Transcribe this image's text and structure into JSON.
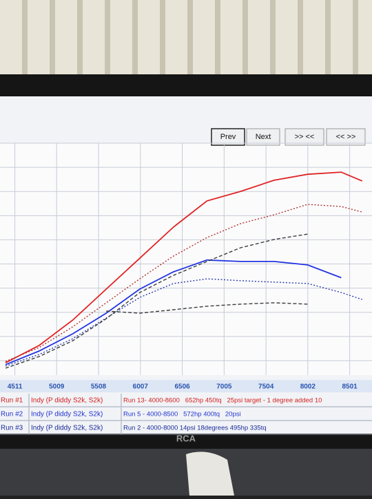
{
  "chart_data": {
    "type": "line",
    "x": [
      4400,
      4800,
      5200,
      5600,
      6000,
      6400,
      6800,
      7200,
      7600,
      8000,
      8400,
      8650
    ],
    "xlim": [
      4334,
      8767
    ],
    "xticks": [
      4511,
      5009,
      5508,
      6007,
      6506,
      7005,
      7504,
      8002,
      8501
    ],
    "ylim": [
      0,
      100
    ],
    "grid": true,
    "series": [
      {
        "color": "#e02222",
        "style": "solid",
        "values": [
          5.3,
          12.8,
          23.7,
          37.1,
          50.4,
          63.8,
          75.1,
          79.2,
          84.0,
          86.6,
          87.5,
          83.7
        ]
      },
      {
        "color": "#b0302c",
        "style": "dotted",
        "values": [
          5.9,
          11.9,
          20.8,
          31.2,
          41.5,
          51.3,
          59.3,
          65.3,
          69.1,
          73.6,
          72.7,
          70.3
        ]
      },
      {
        "color": "#2234e0",
        "style": "solid",
        "values": [
          4.5,
          10.4,
          17.8,
          26.7,
          37.1,
          44.5,
          49.6,
          49.0,
          49.0,
          47.5,
          42.0,
          null
        ]
      },
      {
        "color": "#2a3aa8",
        "style": "dotted",
        "values": [
          3.9,
          8.9,
          15.7,
          24.6,
          33.5,
          39.5,
          41.5,
          40.7,
          40.1,
          39.5,
          35.6,
          32.6
        ]
      },
      {
        "color": "#3a3a3a",
        "style": "dashed",
        "values": [
          3.0,
          8.0,
          14.8,
          24.3,
          35.6,
          43.0,
          49.0,
          54.9,
          58.5,
          60.8,
          null,
          null
        ]
      },
      {
        "color": "#3a3a3a",
        "style": "dashed",
        "values": [
          null,
          null,
          null,
          27.6,
          26.7,
          28.2,
          29.7,
          30.6,
          31.2,
          30.6,
          null,
          null
        ]
      }
    ],
    "legend_rows": [
      {
        "run": "Run #1",
        "vehicle": "Indy (P diddy S2k, S2k)",
        "description": "Run 13- 4000-8600   652hp 450tq   25psi target - 1 degree added 10",
        "color": "#d42020"
      },
      {
        "run": "Run #2",
        "vehicle": "Indy (P diddy S2k, S2k)",
        "description": "Run 5 - 4000-8500   572hp 400tq   20psi",
        "color": "#2234d0"
      },
      {
        "run": "Run #3",
        "vehicle": "Indy (P diddy S2k, S2k)",
        "description": "Run 2 - 4000-8000 14psi 18degrees 495hp 335tq",
        "color": "#1a2a9a"
      }
    ]
  },
  "buttons": [
    "Prev",
    "Next",
    ">> <<",
    "<< >>"
  ],
  "brand": "RCA"
}
